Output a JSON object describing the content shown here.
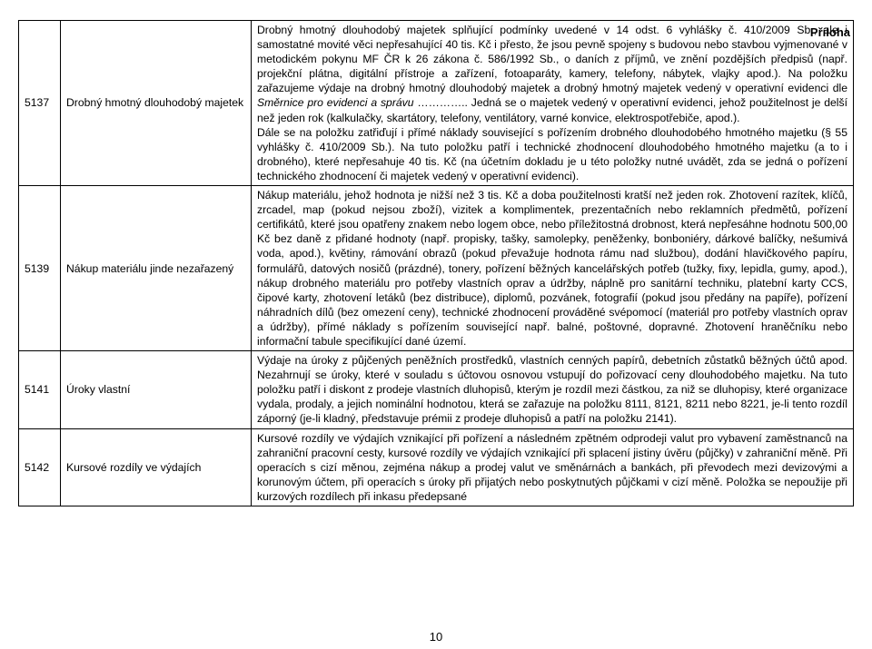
{
  "attachment_label": "Příloha",
  "page_number": "10",
  "rows": [
    {
      "code": "5137",
      "name": "Drobný hmotný dlouhodobý majetek",
      "desc_parts": [
        {
          "t": "Drobný hmotný dlouhodobý majetek splňující podmínky uvedené v 14 odst. 6 vyhlášky č. 410/2009 Sb., ale i samostatné movité věci nepřesahující 40 tis. Kč i přesto, že jsou pevně spojeny s budovou nebo stavbou vyjmenované v metodickém pokynu MF ČR k 26 zákona č. 586/1992 Sb., o daních z příjmů, ve znění pozdějších předpisů (např. projekční plátna, digitální přístroje a zařízení, fotoaparáty, kamery, telefony, nábytek, vlajky apod.). Na položku zařazujeme výdaje na drobný hmotný dlouhodobý majetek a drobný hmotný majetek vedený v operativní evidenci dle "
        },
        {
          "t": "Směrnice pro evidenci a správu",
          "italic": true
        },
        {
          "t": " ………….. Jedná se o majetek vedený v operativní evidenci, jehož použitelnost je delší než jeden rok (kalkulačky, skartátory, telefony, ventilátory, varné konvice, elektrospotřebiče, apod.)."
        },
        {
          "br": true
        },
        {
          "t": "Dále se na položku zatřiďují i přímé náklady související s pořízením drobného dlouhodobého hmotného majetku (§ 55 vyhlášky č. 410/2009 Sb.). Na tuto položku patří i technické zhodnocení dlouhodobého hmotného majetku (a to i drobného), které nepřesahuje 40 tis. Kč (na účetním dokladu je u této položky nutné uvádět, zda se jedná o pořízení technického zhodnocení či majetek vedený v operativní evidenci)."
        }
      ]
    },
    {
      "code": "5139",
      "name": "Nákup materiálu jinde nezařazený",
      "desc_parts": [
        {
          "t": "Nákup materiálu, jehož hodnota je nižší než 3 tis. Kč a doba použitelnosti kratší než jeden rok. Zhotovení razítek, klíčů, zrcadel, map (pokud nejsou zboží), vizitek a komplimentek, prezentačních nebo reklamních předmětů, pořízení certifikátů, které jsou opatřeny znakem nebo logem obce, nebo příležitostná drobnost, která nepřesáhne hodnotu 500,00 Kč bez daně z přidané hodnoty (např. propisky, tašky, samolepky, peněženky, bonboniéry, dárkové balíčky, nešumivá voda, apod.), květiny, rámování obrazů (pokud převažuje hodnota rámu nad službou), dodání hlavičkového papíru, formulářů, datových nosičů (prázdné), tonery, pořízení běžných kancelářských potřeb (tužky, fixy, lepidla, gumy, apod.), nákup drobného materiálu pro potřeby vlastních oprav a údržby, náplně pro sanitární techniku, platební karty CCS, čipové karty, zhotovení letáků (bez distribuce), diplomů, pozvánek, fotografií (pokud jsou předány na papíře), pořízení náhradních dílů (bez omezení ceny), technické zhodnocení prováděné svépomocí (materiál pro potřeby vlastních oprav a údržby), přímé náklady s pořízením související např. balné, poštovné, dopravné. Zhotovení hraněčníku nebo informační tabule specifikující dané území."
        }
      ]
    },
    {
      "code": "5141",
      "name": "Úroky vlastní",
      "desc_parts": [
        {
          "t": "Výdaje na úroky z půjčených peněžních prostředků, vlastních cenných papírů, debetních zůstatků běžných účtů apod. Nezahrnují se úroky, které v souladu s účtovou osnovou vstupují do pořizovací ceny dlouhodobého majetku. Na tuto položku patří i diskont z prodeje vlastních dluhopisů, kterým je rozdíl mezi částkou, za niž se dluhopisy, které organizace vydala, prodaly, a jejich nominální hodnotou, která se zařazuje na položku 8111, 8121, 8211 nebo 8221, je-li tento rozdíl záporný (je-li kladný, představuje prémii z prodeje dluhopisů a patří na položku 2141)."
        }
      ]
    },
    {
      "code": "5142",
      "name": "Kursové rozdíly ve výdajích",
      "desc_parts": [
        {
          "t": "Kursové rozdíly ve výdajích vznikající při pořízení a následném zpětném odprodeji valut pro vybavení zaměstnanců na zahraniční pracovní cesty, kursové rozdíly ve výdajích vznikající při splacení jistiny úvěru (půjčky) v zahraniční měně. Při operacích s cizí měnou, zejména nákup a prodej valut ve směnárnách a bankách, při převodech mezi devizovými a korunovým účtem, při operacích s úroky při přijatých nebo poskytnutých půjčkami v cizí měně. Položka se nepoužije při kurzových rozdílech při inkasu předepsané"
        }
      ]
    }
  ]
}
